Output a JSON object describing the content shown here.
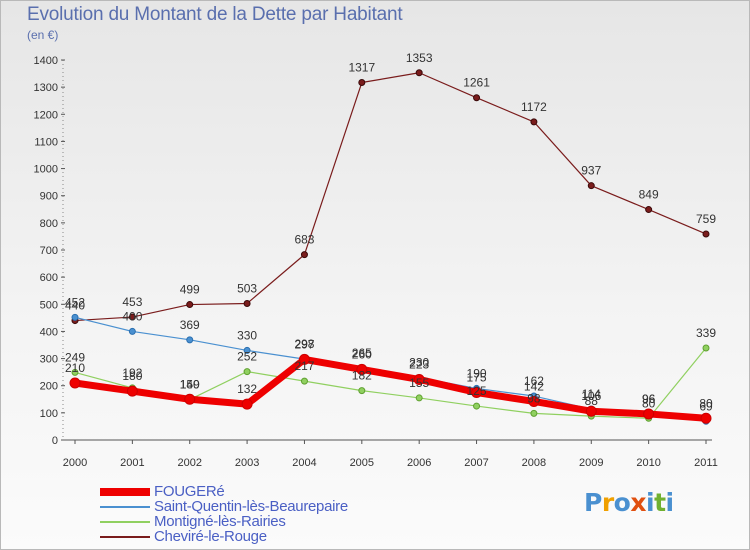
{
  "chart_data": {
    "type": "line",
    "title": "Evolution du Montant de la Dette par Habitant",
    "subtitle": "(en €)",
    "x": [
      "2000",
      "2001",
      "2002",
      "2003",
      "2004",
      "2005",
      "2006",
      "2007",
      "2008",
      "2009",
      "2010",
      "2011"
    ],
    "ylim": [
      0,
      1400
    ],
    "yticks": [
      0,
      100,
      200,
      300,
      400,
      500,
      600,
      700,
      800,
      900,
      1000,
      1100,
      1200,
      1300,
      1400
    ],
    "grid": false,
    "legend_position": "bottom-left",
    "series": [
      {
        "name": "FOUGERé",
        "color": "#ee0000",
        "values": [
          210,
          180,
          150,
          132,
          297,
          260,
          223,
          175,
          142,
          106,
          96,
          80
        ]
      },
      {
        "name": "Saint-Quentin-lès-Beaurepaire",
        "color": "#4a90d0",
        "values": [
          452,
          400,
          369,
          330,
          298,
          265,
          230,
          190,
          162,
          114,
          96,
          69
        ]
      },
      {
        "name": "Montigné-lès-Rairies",
        "color": "#90d060",
        "values": [
          249,
          192,
          149,
          252,
          217,
          182,
          155,
          125,
          98,
          88,
          80,
          339
        ]
      },
      {
        "name": "Cheviré-le-Rouge",
        "color": "#7a1c1c",
        "values": [
          440,
          453,
          499,
          503,
          683,
          1317,
          1353,
          1261,
          1172,
          937,
          849,
          759
        ]
      }
    ]
  },
  "logo": {
    "text": "Proxiti",
    "colors": [
      "#4a90d0",
      "#f0a000",
      "#4a90d0",
      "#e05010",
      "#4a90d0",
      "#70b030",
      "#4a90d0"
    ]
  }
}
